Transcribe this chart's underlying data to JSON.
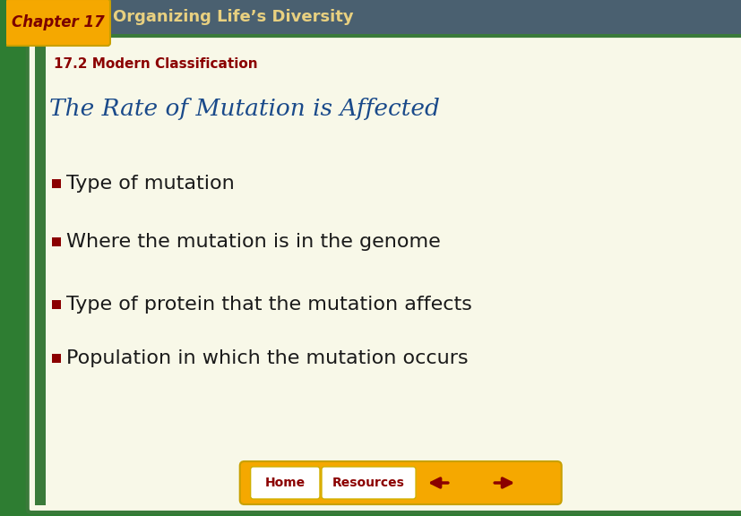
{
  "bg_outer": "#2e7d32",
  "bg_header": "#4a6070",
  "bg_chapter_box": "#f5a800",
  "bg_content": "#f5f5dc",
  "header_text": "Organizing Life’s Diversity",
  "header_text_color": "#e8d080",
  "chapter_label": "Chapter 17",
  "chapter_label_color": "#7b0000",
  "section_label": "17.2 Modern Classification",
  "section_label_color": "#8b0000",
  "title": "The Rate of Mutation is Affected",
  "title_color": "#1a4a8a",
  "bullet_color": "#8b0000",
  "bullet_text_color": "#1a1a1a",
  "bullets": [
    "Type of mutation",
    "Where the mutation is in the genome",
    "Type of protein that the mutation affects",
    "Population in which the mutation occurs"
  ],
  "nav_bar_color": "#f5a800",
  "nav_text_color": "#8b0000",
  "nav_buttons": [
    "Home",
    "Resources"
  ],
  "arrow_color": "#8b0000",
  "content_bg": "#f8f8e8",
  "left_stripe_color": "#3a7a3a"
}
